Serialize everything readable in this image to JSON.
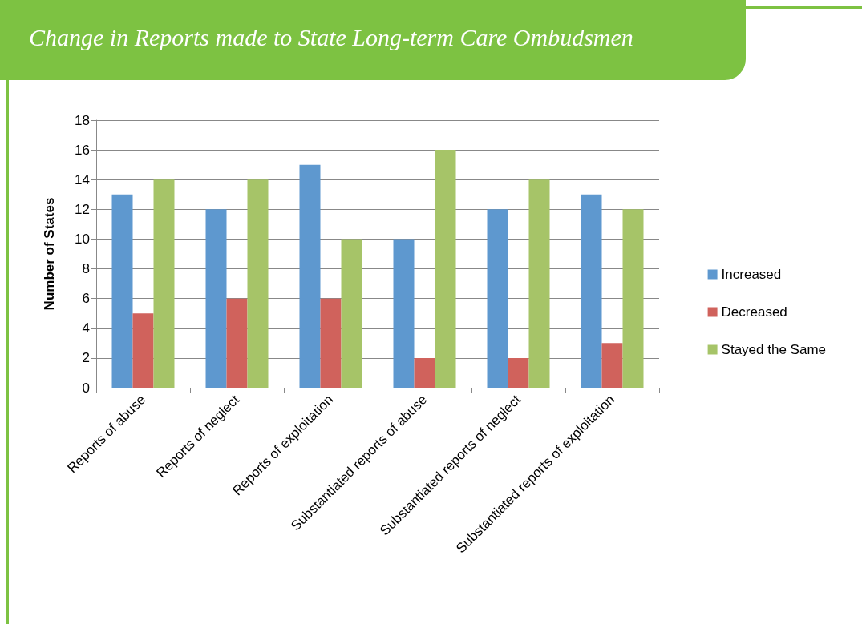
{
  "chart_data": {
    "type": "bar",
    "title": "Change in Reports made to State Long-term Care Ombudsmen",
    "ylabel": "Number of States",
    "categories": [
      "Reports of abuse",
      "Reports of neglect",
      "Reports of exploitation",
      "Substantiated reports of abuse",
      "Substantiated reports of neglect",
      "Substantiated reports of exploitation"
    ],
    "series": [
      {
        "name": "Increased",
        "color": "#5e98cf",
        "values": [
          13,
          12,
          15,
          10,
          12,
          13
        ]
      },
      {
        "name": "Decreased",
        "color": "#d0625c",
        "values": [
          5,
          6,
          6,
          2,
          2,
          3
        ]
      },
      {
        "name": "Stayed the Same",
        "color": "#a6c468",
        "values": [
          14,
          14,
          10,
          16,
          14,
          12
        ]
      }
    ],
    "ylim": [
      0,
      18
    ],
    "yticks": [
      0,
      2,
      4,
      6,
      8,
      10,
      12,
      14,
      16,
      18
    ],
    "grid": "y",
    "legend": "right"
  }
}
